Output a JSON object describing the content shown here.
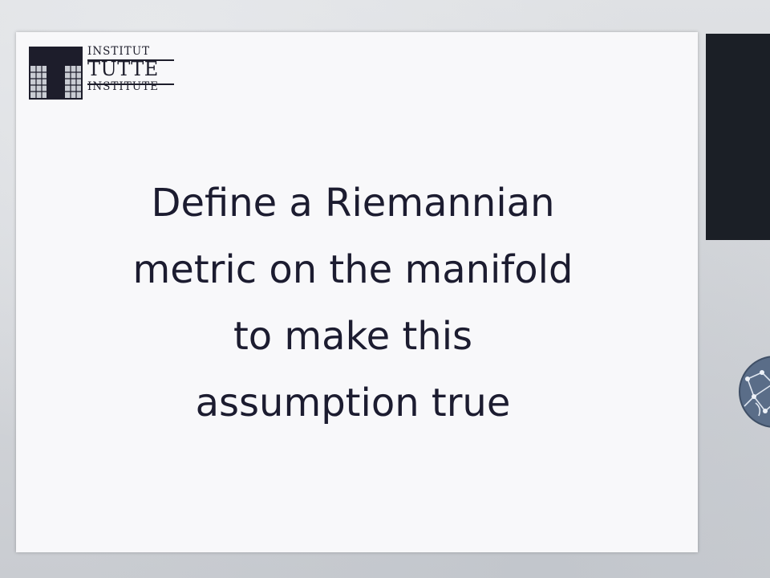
{
  "logo": {
    "line1": "INSTITUT",
    "line2": "TUTTE",
    "line3": "INSTITUTE"
  },
  "slide": {
    "headline_lines": [
      "Define a Riemannian",
      "metric on the manifold",
      "to make this",
      "assumption true"
    ]
  },
  "colors": {
    "slide_background": "#f8f8fa",
    "text": "#1c1c30",
    "side_panel": "#1b1f26",
    "emblem": "#5a6d88"
  },
  "icons": {
    "logo_mark": "tutte-logo-mark-icon",
    "side_emblem": "network-globe-icon"
  }
}
